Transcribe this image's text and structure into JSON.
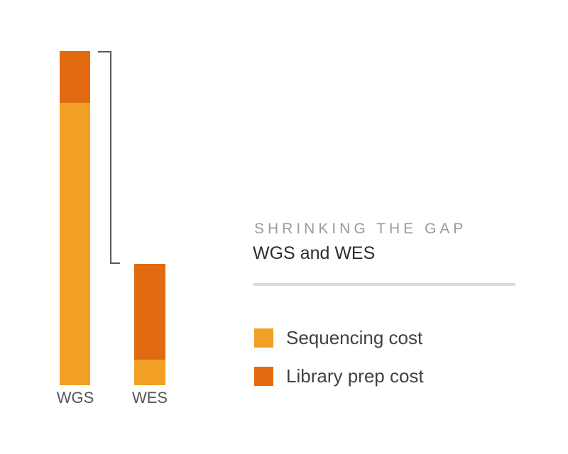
{
  "panel": {
    "title": "SHRINKING THE GAP",
    "subtitle": "WGS and WES"
  },
  "colors": {
    "background": "#FFFFFF",
    "sequencing": "#F2A024",
    "library_prep": "#E26B12",
    "bracket": "#58595B",
    "title_text": "#9B9B9B",
    "subtitle_text": "#2D2D2E",
    "legend_text": "#414141",
    "axis_label_text": "#56575B",
    "divider": "#DADADA"
  },
  "chart_data": {
    "type": "bar",
    "stacked": true,
    "orientation": "vertical",
    "title": "SHRINKING THE GAP",
    "subtitle": "WGS and WES",
    "categories": [
      "WGS",
      "WES"
    ],
    "series": [
      {
        "name": "Sequencing cost",
        "color": "#F2A024",
        "values": [
          398,
          36
        ]
      },
      {
        "name": "Library prep cost",
        "color": "#E26B12",
        "values": [
          73,
          135
        ]
      }
    ],
    "totals": [
      471,
      171
    ],
    "units": "relative bar-segment heights in screenshot pixels; chart shows no numeric axis",
    "gridlines": false,
    "axes_shown": false,
    "legend_position": "right-lower",
    "annotations": [
      "bracket marking the gap from the top of the WGS bar down to the top of the WES bar"
    ]
  }
}
